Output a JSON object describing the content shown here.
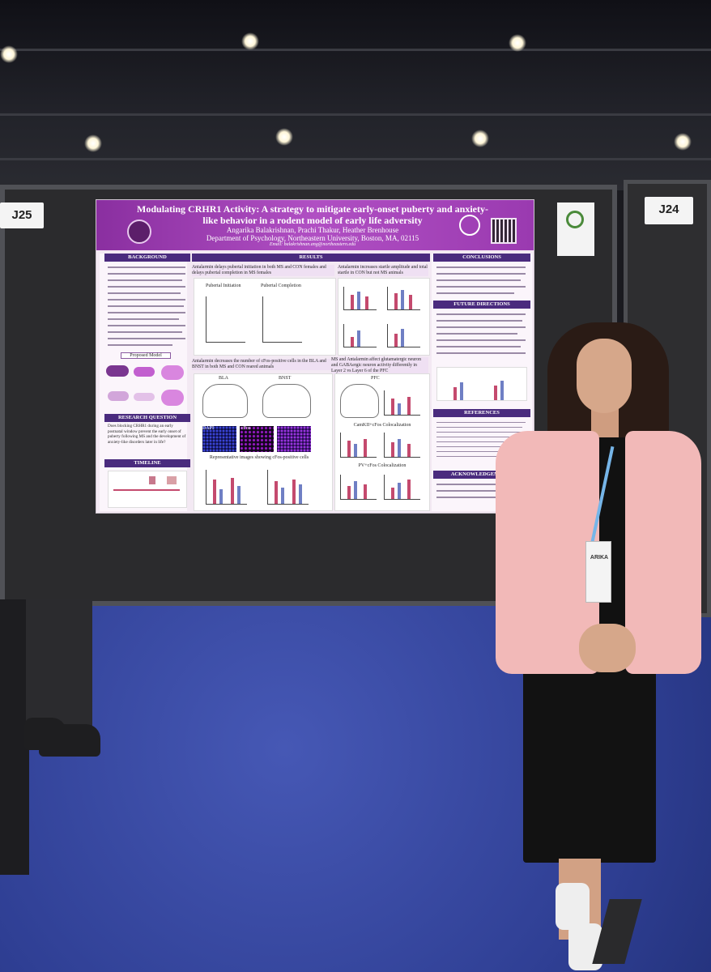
{
  "booth_signs": {
    "left": "J25",
    "right": "J24"
  },
  "poster": {
    "title": "Modulating CRHR1 Activity: A strategy to mitigate early-onset puberty and anxiety-like behavior in a rodent model of early life adversity",
    "authors": "Angarika Balakrishnan, Prachi Thakur, Heather Brenhouse",
    "affiliation": "Department of Psychology, Northeastern University, Boston, MA, 02115",
    "email": "Email: balakrishnan.ang@northeastern.edu",
    "sections": {
      "background": "BACKGROUND",
      "results": "RESULTS",
      "conclusions": "CONCLUSIONS",
      "future_directions": "FUTURE DIRECTIONS",
      "references": "REFERENCES",
      "acknowledgements": "ACKNOWLEDGEMENTS",
      "research_question": "RESEARCH QUESTION",
      "timeline": "TIMELINE",
      "proposed_model": "Proposed Model"
    },
    "research_question_text": "Does blocking CRHR1 during an early postnatal window prevent the early onset of puberty following MS and the development of anxiety-like disorders later in life?",
    "finding_1": "Antalarmin delays pubertal initiation in both MS and CON females and delays pubertal completion in MS females",
    "finding_2": "Antalarmin increases startle amplitude and total startle in CON but not MS animals",
    "finding_3": "Antalarmin decreases the number of cFos-positive cells in the BLA and BNST in both MS and CON reared animals",
    "finding_4": "MS and Antalarmin affect glutamatergic neuron and GABAergic neuron activity differently in Layer 2 vs Layer 6 of the PFC",
    "panel_labels": {
      "pubertal_initiation": "Pubertal Initiation",
      "pubertal_completion": "Pubertal Completion",
      "bla": "BLA",
      "bnst": "BNST",
      "pfc": "PFC",
      "dapi": "DAPI",
      "cfos": "cFos",
      "rep_images": "Representative images showing cFos-positive cells",
      "camk": "CamKII+cFos Colocalization",
      "pv": "PV+cFos Colocalization"
    }
  },
  "attendee_badge": "ARIKA"
}
